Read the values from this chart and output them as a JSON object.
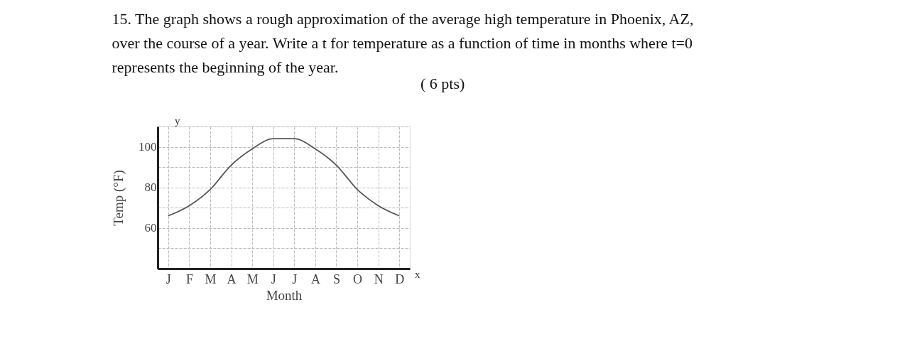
{
  "chart_data": {
    "type": "line",
    "title": "15. The graph shows a rough approximation of the average high temperature in Phoenix, AZ,\nover the course of a year. Write a t for temperature as a function of time in months where t=0\nrepresents the beginning of the year.",
    "annotations": [
      "( 6 pts)",
      "y",
      "x"
    ],
    "xlabel": "Month",
    "ylabel": "Temp (°F)",
    "categories": [
      "J",
      "F",
      "M",
      "A",
      "M",
      "J",
      "J",
      "A",
      "S",
      "O",
      "N",
      "D"
    ],
    "series": [
      {
        "color": "#555555",
        "values": [
          66,
          71,
          79,
          91,
          99,
          104,
          104,
          99,
          91,
          79,
          71,
          66
        ]
      }
    ],
    "ylim": [
      40,
      110
    ],
    "yticks": [
      {
        "value": 50,
        "label": null
      },
      60,
      {
        "value": 70,
        "label": null
      },
      80,
      {
        "value": 90,
        "label": null
      },
      100,
      {
        "value": 110,
        "label": null
      }
    ],
    "grid": true,
    "marker": "none",
    "line_style": "solid"
  }
}
